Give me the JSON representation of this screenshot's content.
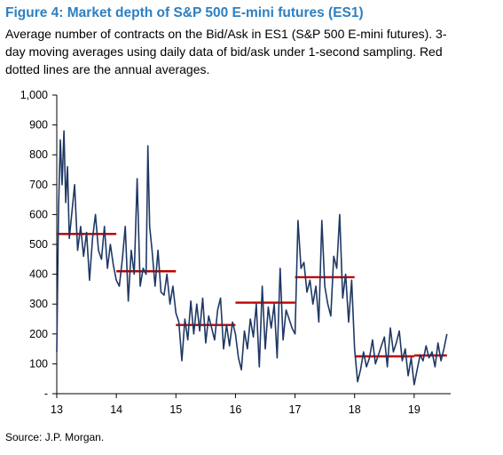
{
  "figure": {
    "title": "Figure 4: Market depth of S&P 500 E-mini futures (ES1)",
    "subtitle": "Average number of contracts on the Bid/Ask in ES1 (S&P 500 E-mini futures). 3-day moving averages using daily data of bid/ask under 1-second sampling. Red dotted lines are the annual averages.",
    "source": "Source: J.P. Morgan."
  },
  "chart_data": {
    "type": "line",
    "title": "Figure 4: Market depth of S&P 500 E-mini futures (ES1)",
    "xlabel": "",
    "ylabel": "",
    "xlim": [
      13,
      19.6
    ],
    "ylim": [
      0,
      1000
    ],
    "grid": false,
    "y_ticks": [
      0,
      100,
      200,
      300,
      400,
      500,
      600,
      700,
      800,
      900,
      1000
    ],
    "y_tick_labels": [
      "-",
      "100",
      "200",
      "300",
      "400",
      "500",
      "600",
      "700",
      "800",
      "900",
      "1,000"
    ],
    "x_ticks": [
      13,
      14,
      15,
      16,
      17,
      18,
      19
    ],
    "x_tick_labels": [
      "13",
      "14",
      "15",
      "16",
      "17",
      "18",
      "19"
    ],
    "colors": {
      "series": "#1f3864",
      "average": "#c00000",
      "title": "#2d7fc1"
    },
    "series": [
      {
        "x": [
          13.0,
          13.03,
          13.06,
          13.09,
          13.12,
          13.15,
          13.18,
          13.21,
          13.25,
          13.3,
          13.35,
          13.4,
          13.45,
          13.5,
          13.55,
          13.6,
          13.65,
          13.7,
          13.75,
          13.8,
          13.85,
          13.9,
          13.95,
          14.0,
          14.05,
          14.1,
          14.15,
          14.2,
          14.25,
          14.3,
          14.35,
          14.4,
          14.45,
          14.5,
          14.53,
          14.56,
          14.6,
          14.65,
          14.7,
          14.75,
          14.8,
          14.85,
          14.9,
          14.95,
          15.0,
          15.05,
          15.1,
          15.15,
          15.2,
          15.25,
          15.3,
          15.35,
          15.4,
          15.45,
          15.5,
          15.55,
          15.6,
          15.65,
          15.7,
          15.75,
          15.8,
          15.85,
          15.9,
          15.95,
          16.0,
          16.05,
          16.1,
          16.15,
          16.2,
          16.25,
          16.3,
          16.35,
          16.4,
          16.45,
          16.5,
          16.55,
          16.6,
          16.65,
          16.7,
          16.75,
          16.8,
          16.85,
          16.9,
          16.95,
          17.0,
          17.05,
          17.1,
          17.15,
          17.2,
          17.25,
          17.3,
          17.35,
          17.4,
          17.45,
          17.5,
          17.55,
          17.6,
          17.65,
          17.7,
          17.75,
          17.8,
          17.85,
          17.9,
          17.95,
          18.0,
          18.05,
          18.1,
          18.15,
          18.2,
          18.25,
          18.3,
          18.35,
          18.4,
          18.45,
          18.5,
          18.55,
          18.6,
          18.65,
          18.7,
          18.75,
          18.8,
          18.85,
          18.9,
          18.95,
          19.0,
          19.05,
          19.1,
          19.15,
          19.2,
          19.25,
          19.3,
          19.35,
          19.4,
          19.45,
          19.5,
          19.55
        ],
        "values": [
          140,
          620,
          850,
          700,
          880,
          640,
          760,
          520,
          600,
          700,
          480,
          560,
          460,
          540,
          380,
          520,
          600,
          480,
          450,
          560,
          420,
          500,
          430,
          380,
          360,
          450,
          560,
          310,
          480,
          400,
          720,
          360,
          420,
          400,
          830,
          560,
          480,
          360,
          480,
          340,
          330,
          400,
          300,
          360,
          270,
          240,
          110,
          250,
          180,
          310,
          200,
          300,
          210,
          320,
          170,
          260,
          220,
          180,
          280,
          320,
          150,
          230,
          160,
          240,
          200,
          120,
          80,
          210,
          150,
          250,
          190,
          300,
          90,
          360,
          150,
          290,
          220,
          300,
          120,
          420,
          180,
          280,
          250,
          220,
          200,
          580,
          420,
          440,
          340,
          380,
          300,
          360,
          240,
          580,
          360,
          300,
          260,
          460,
          420,
          600,
          320,
          400,
          240,
          380,
          150,
          40,
          80,
          140,
          90,
          120,
          180,
          100,
          130,
          160,
          190,
          90,
          220,
          140,
          170,
          210,
          110,
          150,
          60,
          120,
          30,
          80,
          130,
          110,
          160,
          120,
          140,
          90,
          170,
          110,
          150,
          200
        ]
      }
    ],
    "annual_averages": [
      {
        "year": "13",
        "x_start": 13.0,
        "x_end": 14.0,
        "value": 535
      },
      {
        "year": "14",
        "x_start": 14.0,
        "x_end": 15.0,
        "value": 410
      },
      {
        "year": "15",
        "x_start": 15.0,
        "x_end": 16.0,
        "value": 230
      },
      {
        "year": "16",
        "x_start": 16.0,
        "x_end": 17.0,
        "value": 305
      },
      {
        "year": "17",
        "x_start": 17.0,
        "x_end": 18.0,
        "value": 390
      },
      {
        "year": "18",
        "x_start": 18.0,
        "x_end": 19.0,
        "value": 125
      },
      {
        "year": "19",
        "x_start": 19.0,
        "x_end": 19.55,
        "value": 128
      }
    ]
  }
}
